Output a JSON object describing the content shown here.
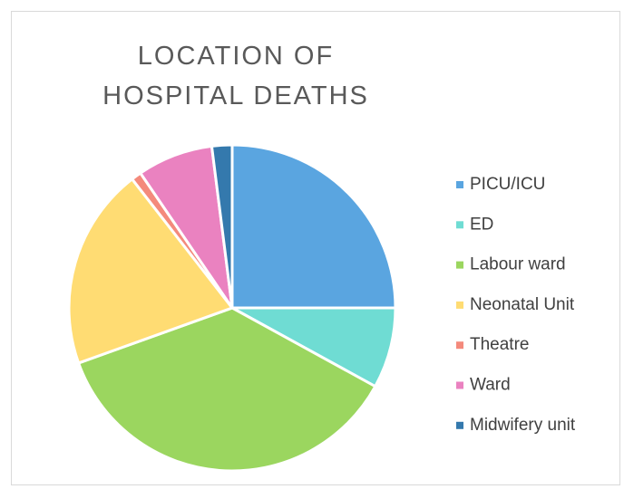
{
  "chart_data": {
    "type": "pie",
    "title": "LOCATION OF HOSPITAL DEATHS",
    "categories": [
      "PICU/ICU",
      "ED",
      "Labour ward",
      "Neonatal Unit",
      "Theatre",
      "Ward",
      "Midwifery unit"
    ],
    "values": [
      25,
      8,
      36.5,
      20,
      1,
      7.5,
      2
    ],
    "colors": [
      "#5aa5e0",
      "#6fdcd3",
      "#9bd65f",
      "#ffdc73",
      "#f48a7c",
      "#ea82c0",
      "#3479ad"
    ],
    "legend": "right"
  }
}
